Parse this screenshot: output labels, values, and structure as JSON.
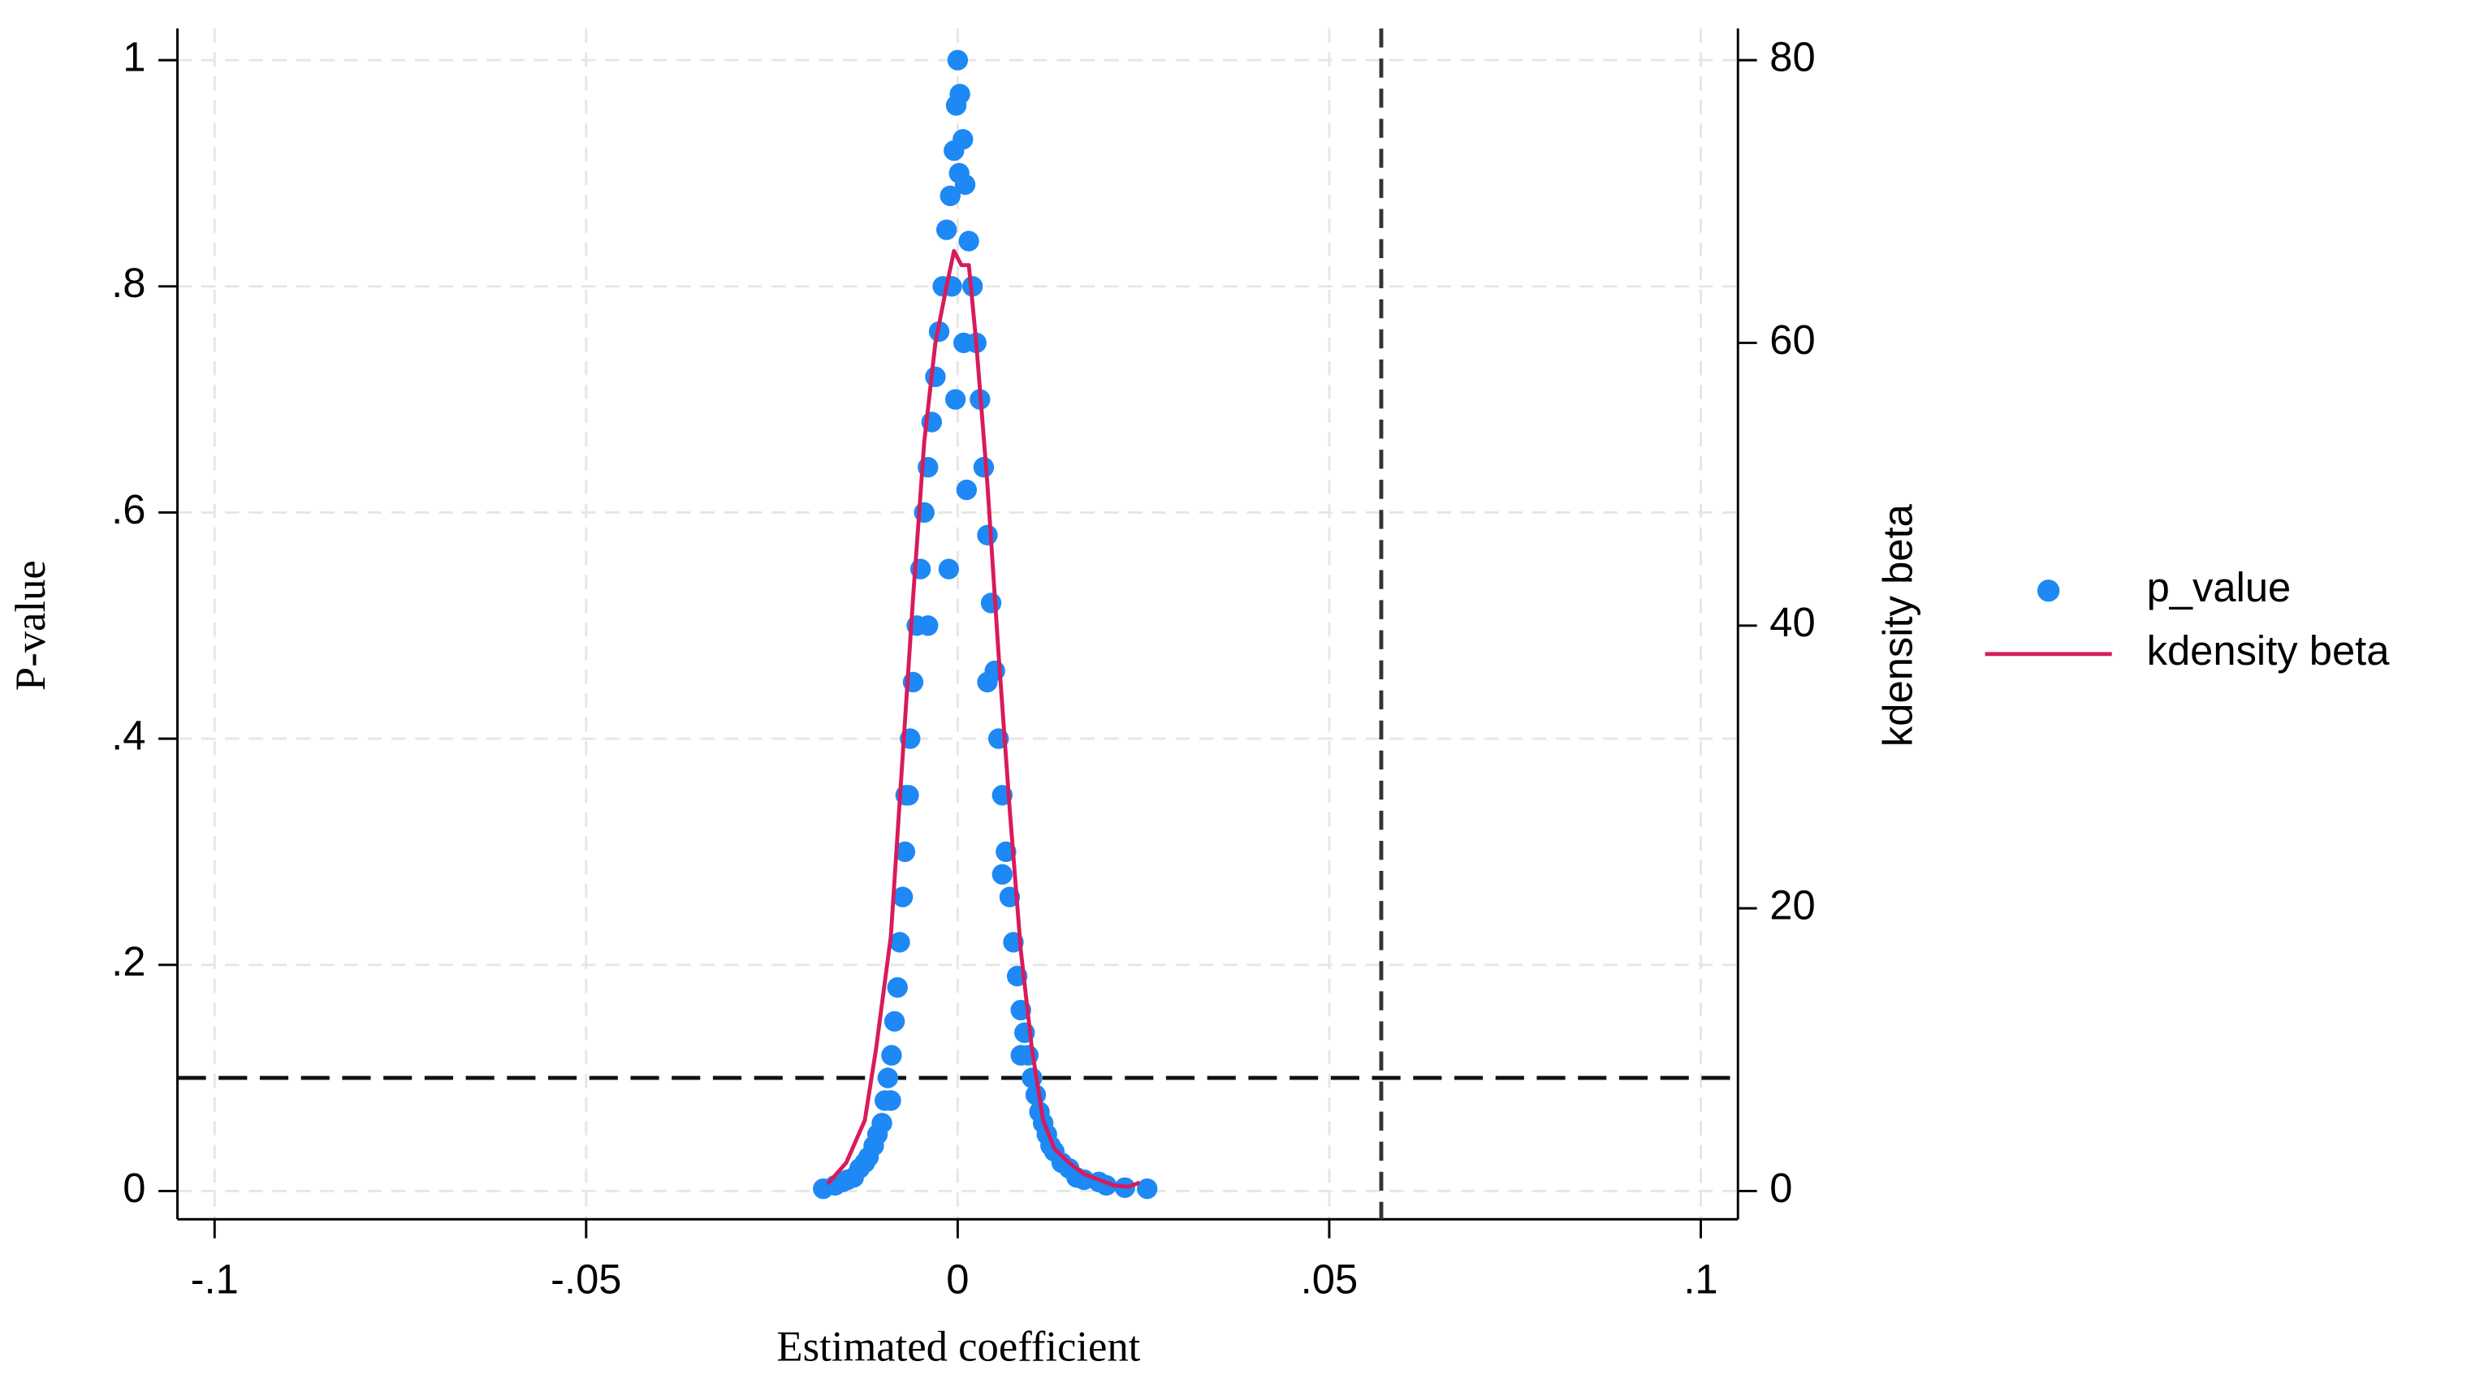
{
  "chart_data": {
    "type": "scatter",
    "x_label": "Estimated coefficient",
    "y_label": "P-value",
    "y2_label": "kdensity beta",
    "xlim": [
      -0.105,
      0.105
    ],
    "ylim": [
      -0.025,
      1.028
    ],
    "y2lim": [
      -2,
      82.24
    ],
    "xticks": [
      {
        "value": -0.1,
        "label": "-.1"
      },
      {
        "value": -0.05,
        "label": "-.05"
      },
      0,
      {
        "value": 0.05,
        "label": ".05"
      },
      {
        "value": 0.1,
        "label": ".1"
      }
    ],
    "yticks": [
      0,
      {
        "value": 0.2,
        "label": ".2"
      },
      {
        "value": 0.4,
        "label": ".4"
      },
      {
        "value": 0.6,
        "label": ".6"
      },
      {
        "value": 0.8,
        "label": ".8"
      },
      1
    ],
    "y2ticks": [
      0,
      20,
      40,
      60,
      80
    ],
    "grid": true,
    "xline": 0.057,
    "yline": 0.1,
    "legend": "right",
    "series": [
      {
        "name": "p_value",
        "type": "scatter",
        "color": "#1e88f5",
        "x": [
          -0.0181,
          -0.0165,
          -0.0155,
          -0.0148,
          -0.014,
          -0.0132,
          -0.0125,
          -0.012,
          -0.0113,
          -0.0108,
          -0.0102,
          -0.0098,
          -0.0094,
          -0.0089,
          -0.0085,
          -0.0081,
          -0.0078,
          -0.0074,
          -0.0071,
          -0.0066,
          -0.0064,
          -0.006,
          -0.0055,
          -0.005,
          -0.0045,
          -0.004,
          -0.0035,
          -0.003,
          -0.0025,
          -0.002,
          -0.0015,
          -0.001,
          -0.0005,
          -0.0002,
          0,
          0.0003,
          0.0007,
          0.001,
          0.0015,
          0.002,
          0.0025,
          0.003,
          0.0035,
          0.004,
          0.0045,
          0.005,
          0.0055,
          0.006,
          0.0065,
          0.007,
          0.0075,
          0.008,
          0.0085,
          0.009,
          0.0095,
          0.01,
          0.0105,
          0.011,
          0.0115,
          0.012,
          0.0125,
          0.013,
          0.014,
          0.015,
          0.016,
          0.017,
          0.019,
          0.02,
          0.0225,
          0.0255,
          0.0002,
          -0.0008,
          0.0008,
          -0.0003,
          0.0012,
          -0.0012,
          0.004,
          -0.004,
          0.006,
          -0.007,
          0.0085,
          -0.009
        ],
        "values": [
          0.002,
          0.005,
          0.008,
          0.01,
          0.012,
          0.02,
          0.025,
          0.03,
          0.04,
          0.05,
          0.06,
          0.08,
          0.1,
          0.12,
          0.15,
          0.18,
          0.22,
          0.26,
          0.3,
          0.35,
          0.4,
          0.45,
          0.5,
          0.55,
          0.6,
          0.64,
          0.68,
          0.72,
          0.76,
          0.8,
          0.85,
          0.88,
          0.92,
          0.96,
          1,
          0.97,
          0.93,
          0.89,
          0.84,
          0.8,
          0.75,
          0.7,
          0.64,
          0.58,
          0.52,
          0.46,
          0.4,
          0.35,
          0.3,
          0.26,
          0.22,
          0.19,
          0.16,
          0.14,
          0.12,
          0.1,
          0.085,
          0.07,
          0.06,
          0.05,
          0.04,
          0.035,
          0.025,
          0.02,
          0.012,
          0.01,
          0.008,
          0.005,
          0.003,
          0.002,
          0.9,
          0.8,
          0.75,
          0.7,
          0.62,
          0.55,
          0.45,
          0.5,
          0.28,
          0.35,
          0.12,
          0.08
        ]
      },
      {
        "name": "kdensity beta",
        "type": "line",
        "color": "#d81b5a",
        "axis": "y2",
        "x": [
          -0.0175,
          -0.015,
          -0.0125,
          -0.011,
          -0.009,
          -0.0075,
          -0.006,
          -0.0045,
          -0.003,
          -0.0015,
          -0.0005,
          0.0005,
          0.0015,
          0.0025,
          0.004,
          0.0055,
          0.007,
          0.0085,
          0.01,
          0.0115,
          0.013,
          0.015,
          0.017,
          0.019,
          0.021,
          0.023,
          0.0245
        ],
        "values": [
          0.5,
          2,
          5,
          10,
          18,
          30,
          42,
          53,
          60,
          64,
          66.5,
          65.5,
          65.5,
          60,
          50,
          38,
          27,
          17,
          10,
          5,
          3,
          2,
          1.2,
          0.8,
          0.4,
          0.3,
          0.6
        ]
      }
    ]
  }
}
